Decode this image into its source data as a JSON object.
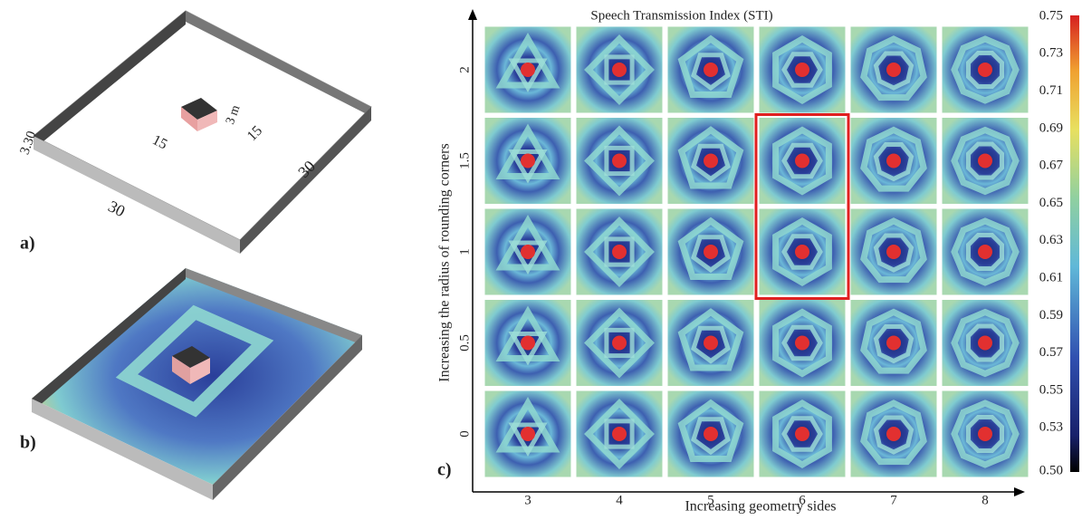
{
  "panel_a": {
    "label": "a)",
    "dimensions": {
      "wall_height": "3.30",
      "side_left": "30",
      "side_right": "30",
      "inner_left": "15",
      "inner_right": "15",
      "source_size": "3 m"
    }
  },
  "panel_b": {
    "label": "b)"
  },
  "panel_c": {
    "label": "c)",
    "title": "Speech Transmission Index (STI)",
    "x_label": "Increasing geometry sides",
    "y_label": "Increasing the radius of rounding corners",
    "x_ticks": [
      "3",
      "4",
      "5",
      "6",
      "7",
      "8"
    ],
    "y_ticks": [
      "2",
      "1.5",
      "1",
      "0.5",
      "0"
    ],
    "colorbar_ticks": [
      "0.75",
      "0.73",
      "0.71",
      "0.69",
      "0.67",
      "0.65",
      "0.63",
      "0.61",
      "0.59",
      "0.57",
      "0.55",
      "0.53",
      "0.50"
    ]
  }
}
